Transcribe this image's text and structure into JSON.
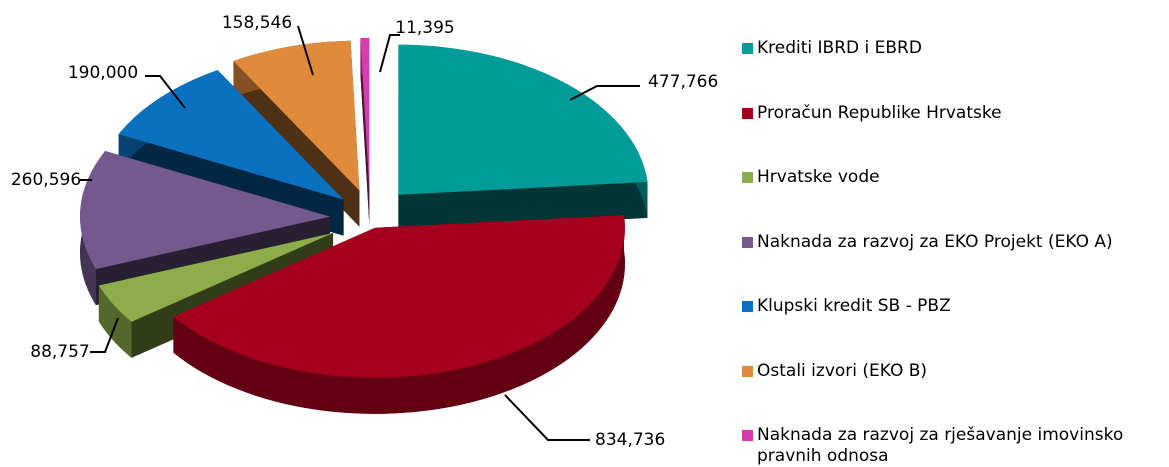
{
  "chart_data": {
    "type": "pie",
    "categories": [
      "Krediti IBRD i EBRD",
      "Proračun Republike Hrvatske",
      "Hrvatske vode",
      "Naknada za razvoj za EKO Projekt (EKO A)",
      "Klupski kredit SB - PBZ",
      "Ostali izvori (EKO B)",
      "Naknada za razvoj za rješavanje imovinsko pravnih odnosa"
    ],
    "values": [
      477766,
      834736,
      88757,
      260596,
      190000,
      158546,
      11395
    ],
    "value_labels": [
      "477,766",
      "834,736",
      "88,757",
      "260,596",
      "190,000",
      "158,546",
      "11,395"
    ],
    "colors": [
      "#009c9a",
      "#a5001e",
      "#8cad4a",
      "#74598f",
      "#0a70c0",
      "#e08a3c",
      "#d63db0"
    ],
    "legend": "right"
  }
}
